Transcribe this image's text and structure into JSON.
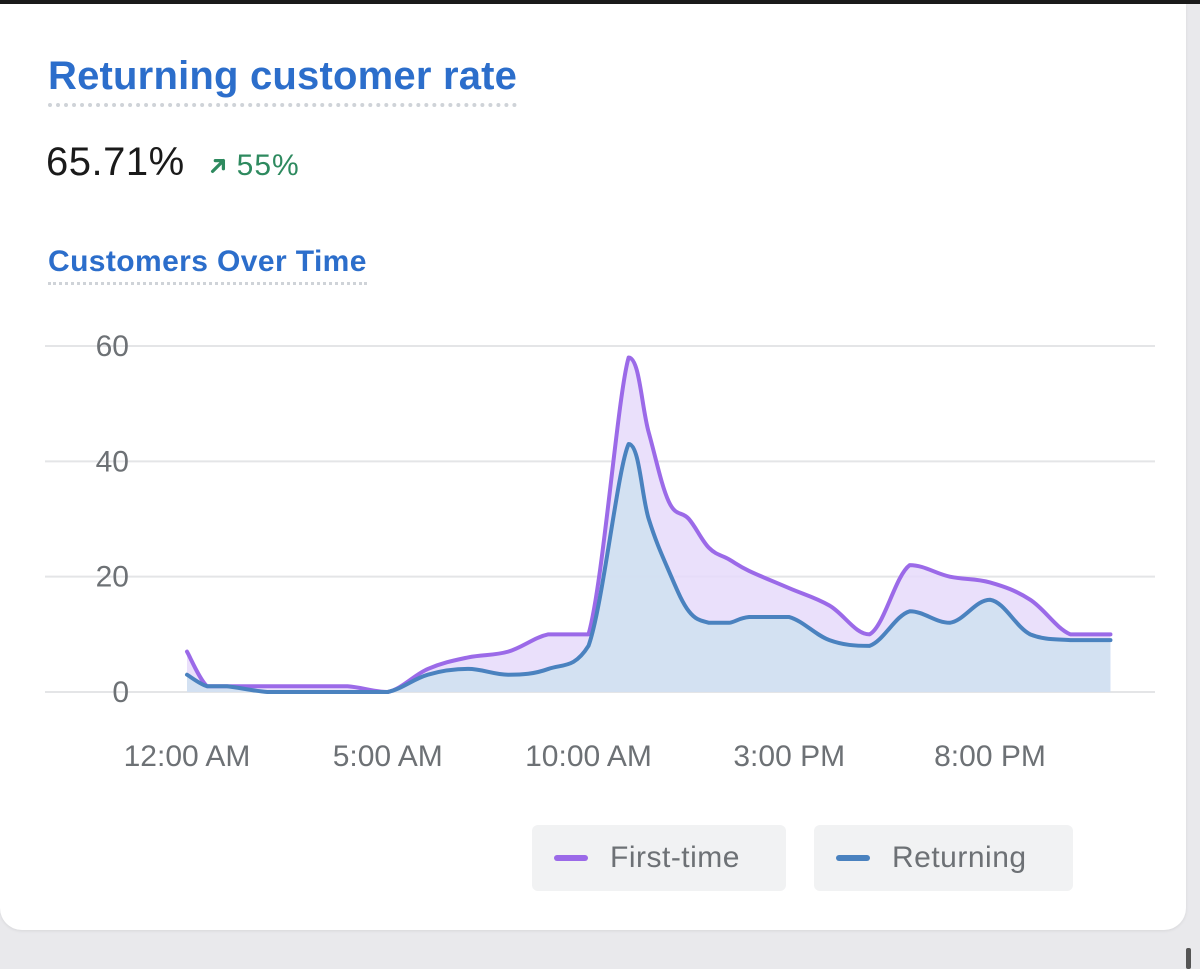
{
  "metric": {
    "title": "Returning customer rate",
    "value": "65.71%",
    "change": "55%",
    "change_direction": "up",
    "change_color": "#2e8a5f"
  },
  "chart_title": "Customers Over Time",
  "chart_data": {
    "type": "area",
    "title": "Customers Over Time",
    "xlabel": "",
    "ylabel": "",
    "ylim": [
      0,
      60
    ],
    "yticks": [
      0,
      20,
      40,
      60
    ],
    "xtick_labels": [
      "12:00 AM",
      "5:00 AM",
      "10:00 AM",
      "3:00 PM",
      "8:00 PM"
    ],
    "xtick_positions": [
      0,
      5,
      10,
      15,
      20
    ],
    "x": [
      0,
      0.5,
      1,
      2,
      3,
      4,
      5,
      6,
      7,
      8,
      9,
      10,
      11,
      11.5,
      12,
      12.5,
      13,
      13.5,
      14,
      15,
      16,
      17,
      18,
      19,
      20,
      21,
      22,
      23
    ],
    "grid": true,
    "legend_position": "bottom-right",
    "series": [
      {
        "name": "First-time",
        "color": "#9b6ae8",
        "fill": "#e6dafa",
        "values": [
          7,
          1,
          1,
          1,
          1,
          1,
          0,
          4,
          6,
          7,
          10,
          10,
          58,
          45,
          33,
          30,
          25,
          23,
          21,
          18,
          15,
          10,
          22,
          20,
          19,
          16,
          10,
          10
        ]
      },
      {
        "name": "Returning",
        "color": "#4a82bf",
        "fill": "#cfe0f0",
        "values": [
          3,
          1,
          1,
          0,
          0,
          0,
          0,
          3,
          4,
          3,
          4,
          8,
          43,
          30,
          21,
          14,
          12,
          12,
          13,
          13,
          9,
          8,
          14,
          12,
          16,
          10,
          9,
          9
        ]
      }
    ]
  }
}
